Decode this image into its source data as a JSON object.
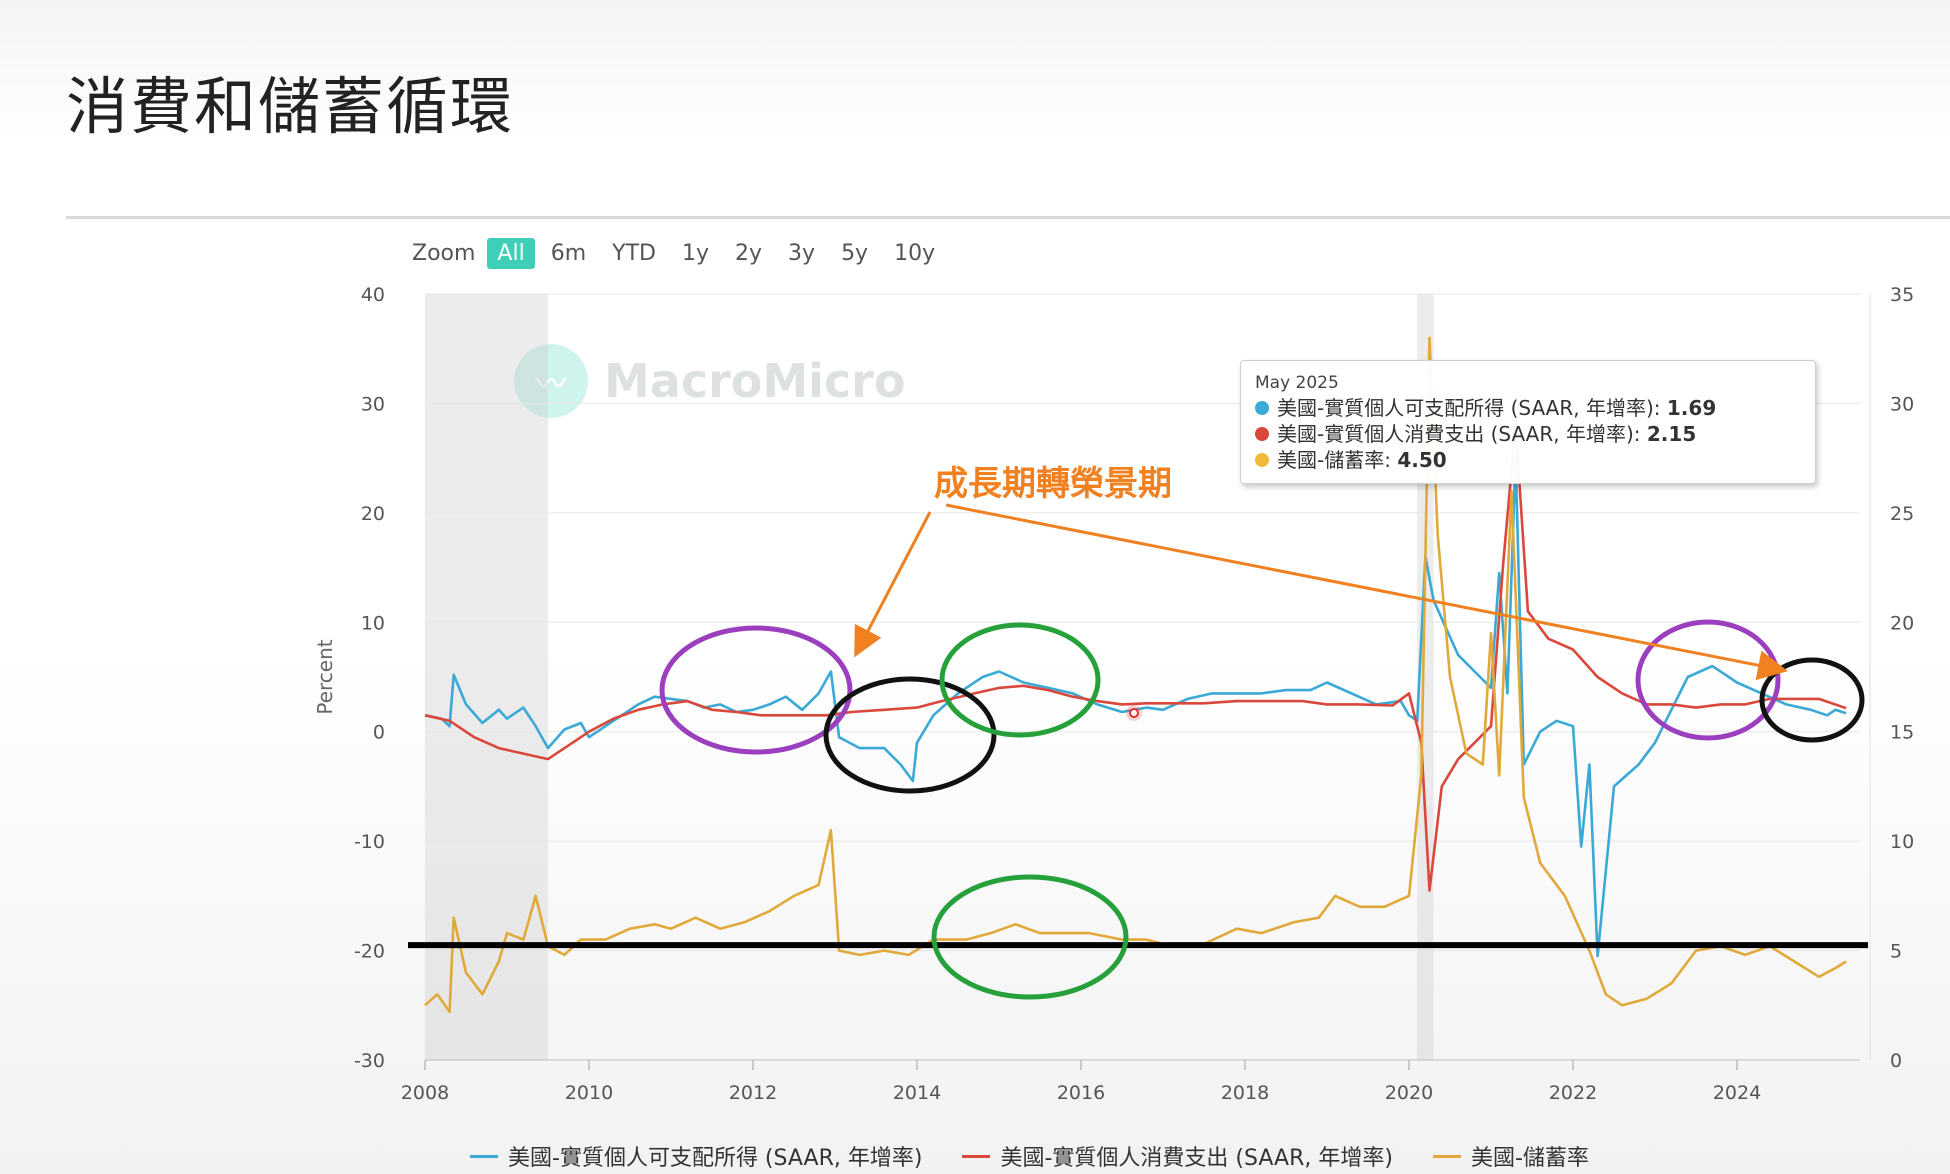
{
  "page": {
    "title": "消費和儲蓄循環"
  },
  "zoom": {
    "label": "Zoom",
    "buttons": [
      "All",
      "6m",
      "YTD",
      "1y",
      "2y",
      "3y",
      "5y",
      "10y"
    ],
    "active": "All"
  },
  "watermark": {
    "text": "MacroMicro"
  },
  "annotation": {
    "label": "成長期轉榮景期"
  },
  "tooltip": {
    "date": "May 2025",
    "rows": [
      {
        "name": "美國-實質個人可支配所得 (SAAR, 年增率)",
        "value": "1.69",
        "color": "#3aa9d6"
      },
      {
        "name": "美國-實質個人消費支出 (SAAR, 年增率)",
        "value": "2.15",
        "color": "#d9483b"
      },
      {
        "name": "美國-儲蓄率",
        "value": "4.50",
        "color": "#f2b93b"
      }
    ]
  },
  "legend": [
    {
      "name": "美國-實質個人可支配所得 (SAAR, 年增率)",
      "color": "#3aa9d6"
    },
    {
      "name": "美國-實質個人消費支出 (SAAR, 年增率)",
      "color": "#d9483b"
    },
    {
      "name": "美國-儲蓄率",
      "color": "#e0a93a"
    }
  ],
  "chart_data": {
    "type": "line",
    "xlabel": "",
    "ylabel": "Percent",
    "xlim": [
      2008,
      2025.5
    ],
    "x_ticks": [
      "2008",
      "2010",
      "2012",
      "2014",
      "2016",
      "2018",
      "2020",
      "2022",
      "2024"
    ],
    "ylim_left": [
      -30,
      40
    ],
    "y_ticks_left": [
      "40",
      "30",
      "20",
      "10",
      "0",
      "-10",
      "-20",
      "-30"
    ],
    "ylim_right": [
      0,
      35
    ],
    "y_ticks_right": [
      "35",
      "30",
      "25",
      "20",
      "15",
      "10",
      "5",
      "0"
    ],
    "grid": true,
    "shaded_periods": [
      [
        2008.0,
        2009.5
      ],
      [
        2020.1,
        2020.3
      ]
    ],
    "reference_line_left_y": -19.5,
    "series": [
      {
        "name": "美國-實質個人可支配所得 (SAAR, 年增率)",
        "axis": "left",
        "color": "#3aa9d6",
        "points": [
          [
            2008.0,
            1.5
          ],
          [
            2008.2,
            1.2
          ],
          [
            2008.3,
            0.5
          ],
          [
            2008.35,
            5.2
          ],
          [
            2008.5,
            2.5
          ],
          [
            2008.7,
            0.8
          ],
          [
            2008.9,
            2.0
          ],
          [
            2009.0,
            1.2
          ],
          [
            2009.2,
            2.2
          ],
          [
            2009.35,
            0.5
          ],
          [
            2009.5,
            -1.5
          ],
          [
            2009.7,
            0.2
          ],
          [
            2009.9,
            0.8
          ],
          [
            2010.0,
            -0.5
          ],
          [
            2010.2,
            0.5
          ],
          [
            2010.4,
            1.5
          ],
          [
            2010.6,
            2.5
          ],
          [
            2010.8,
            3.2
          ],
          [
            2011.0,
            3.0
          ],
          [
            2011.2,
            2.8
          ],
          [
            2011.4,
            2.2
          ],
          [
            2011.6,
            2.5
          ],
          [
            2011.8,
            1.8
          ],
          [
            2012.0,
            2.0
          ],
          [
            2012.2,
            2.5
          ],
          [
            2012.4,
            3.2
          ],
          [
            2012.6,
            2.0
          ],
          [
            2012.8,
            3.5
          ],
          [
            2012.95,
            5.5
          ],
          [
            2013.05,
            -0.5
          ],
          [
            2013.3,
            -1.5
          ],
          [
            2013.6,
            -1.5
          ],
          [
            2013.8,
            -3.0
          ],
          [
            2013.95,
            -4.5
          ],
          [
            2014.0,
            -1.0
          ],
          [
            2014.2,
            1.5
          ],
          [
            2014.5,
            3.5
          ],
          [
            2014.8,
            5.0
          ],
          [
            2015.0,
            5.5
          ],
          [
            2015.3,
            4.5
          ],
          [
            2015.6,
            4.0
          ],
          [
            2015.9,
            3.5
          ],
          [
            2016.2,
            2.5
          ],
          [
            2016.5,
            1.8
          ],
          [
            2016.8,
            2.2
          ],
          [
            2017.0,
            2.0
          ],
          [
            2017.3,
            3.0
          ],
          [
            2017.6,
            3.5
          ],
          [
            2017.9,
            3.5
          ],
          [
            2018.2,
            3.5
          ],
          [
            2018.5,
            3.8
          ],
          [
            2018.8,
            3.8
          ],
          [
            2019.0,
            4.5
          ],
          [
            2019.3,
            3.5
          ],
          [
            2019.6,
            2.5
          ],
          [
            2019.9,
            2.8
          ],
          [
            2020.0,
            1.5
          ],
          [
            2020.1,
            1.0
          ],
          [
            2020.2,
            16.0
          ],
          [
            2020.3,
            12.0
          ],
          [
            2020.45,
            9.5
          ],
          [
            2020.6,
            7.0
          ],
          [
            2020.8,
            5.5
          ],
          [
            2021.0,
            4.0
          ],
          [
            2021.1,
            14.5
          ],
          [
            2021.2,
            3.5
          ],
          [
            2021.3,
            25.0
          ],
          [
            2021.4,
            -3.0
          ],
          [
            2021.6,
            0.0
          ],
          [
            2021.8,
            1.0
          ],
          [
            2022.0,
            0.5
          ],
          [
            2022.1,
            -10.5
          ],
          [
            2022.2,
            -3.0
          ],
          [
            2022.3,
            -20.5
          ],
          [
            2022.5,
            -5.0
          ],
          [
            2022.8,
            -3.0
          ],
          [
            2023.0,
            -1.0
          ],
          [
            2023.2,
            2.0
          ],
          [
            2023.4,
            5.0
          ],
          [
            2023.7,
            6.0
          ],
          [
            2024.0,
            4.5
          ],
          [
            2024.3,
            3.5
          ],
          [
            2024.6,
            2.5
          ],
          [
            2024.9,
            2.0
          ],
          [
            2025.1,
            1.5
          ],
          [
            2025.2,
            2.0
          ],
          [
            2025.33,
            1.69
          ]
        ]
      },
      {
        "name": "美國-實質個人消費支出 (SAAR, 年增率)",
        "axis": "left",
        "color": "#d9483b",
        "points": [
          [
            2008.0,
            1.5
          ],
          [
            2008.3,
            1.0
          ],
          [
            2008.6,
            -0.5
          ],
          [
            2008.9,
            -1.5
          ],
          [
            2009.2,
            -2.0
          ],
          [
            2009.5,
            -2.5
          ],
          [
            2009.8,
            -1.0
          ],
          [
            2010.0,
            0.0
          ],
          [
            2010.3,
            1.2
          ],
          [
            2010.6,
            2.0
          ],
          [
            2010.9,
            2.5
          ],
          [
            2011.2,
            2.8
          ],
          [
            2011.5,
            2.0
          ],
          [
            2011.8,
            1.8
          ],
          [
            2012.1,
            1.5
          ],
          [
            2012.5,
            1.5
          ],
          [
            2012.9,
            1.5
          ],
          [
            2013.2,
            1.8
          ],
          [
            2013.6,
            2.0
          ],
          [
            2014.0,
            2.2
          ],
          [
            2014.3,
            2.8
          ],
          [
            2014.7,
            3.5
          ],
          [
            2015.0,
            4.0
          ],
          [
            2015.3,
            4.2
          ],
          [
            2015.6,
            3.8
          ],
          [
            2015.9,
            3.2
          ],
          [
            2016.2,
            2.8
          ],
          [
            2016.5,
            2.5
          ],
          [
            2016.8,
            2.6
          ],
          [
            2017.1,
            2.6
          ],
          [
            2017.5,
            2.6
          ],
          [
            2017.9,
            2.8
          ],
          [
            2018.3,
            2.8
          ],
          [
            2018.7,
            2.8
          ],
          [
            2019.0,
            2.5
          ],
          [
            2019.4,
            2.5
          ],
          [
            2019.8,
            2.4
          ],
          [
            2020.0,
            3.5
          ],
          [
            2020.15,
            -1.0
          ],
          [
            2020.25,
            -14.5
          ],
          [
            2020.4,
            -5.0
          ],
          [
            2020.6,
            -2.5
          ],
          [
            2020.8,
            -1.0
          ],
          [
            2021.0,
            0.5
          ],
          [
            2021.15,
            15.5
          ],
          [
            2021.3,
            28.0
          ],
          [
            2021.45,
            11.0
          ],
          [
            2021.7,
            8.5
          ],
          [
            2022.0,
            7.5
          ],
          [
            2022.3,
            5.0
          ],
          [
            2022.6,
            3.5
          ],
          [
            2022.9,
            2.5
          ],
          [
            2023.2,
            2.5
          ],
          [
            2023.5,
            2.2
          ],
          [
            2023.8,
            2.5
          ],
          [
            2024.1,
            2.5
          ],
          [
            2024.4,
            3.0
          ],
          [
            2024.7,
            3.0
          ],
          [
            2025.0,
            3.0
          ],
          [
            2025.33,
            2.15
          ]
        ]
      },
      {
        "name": "美國-儲蓄率",
        "axis": "right",
        "color": "#e0a93a",
        "points": [
          [
            2008.0,
            2.5
          ],
          [
            2008.15,
            3.0
          ],
          [
            2008.3,
            2.2
          ],
          [
            2008.35,
            6.5
          ],
          [
            2008.5,
            4.0
          ],
          [
            2008.7,
            3.0
          ],
          [
            2008.9,
            4.5
          ],
          [
            2009.0,
            5.8
          ],
          [
            2009.2,
            5.5
          ],
          [
            2009.35,
            7.5
          ],
          [
            2009.5,
            5.2
          ],
          [
            2009.7,
            4.8
          ],
          [
            2009.9,
            5.5
          ],
          [
            2010.2,
            5.5
          ],
          [
            2010.5,
            6.0
          ],
          [
            2010.8,
            6.2
          ],
          [
            2011.0,
            6.0
          ],
          [
            2011.3,
            6.5
          ],
          [
            2011.6,
            6.0
          ],
          [
            2011.9,
            6.3
          ],
          [
            2012.2,
            6.8
          ],
          [
            2012.5,
            7.5
          ],
          [
            2012.8,
            8.0
          ],
          [
            2012.95,
            10.5
          ],
          [
            2013.05,
            5.0
          ],
          [
            2013.3,
            4.8
          ],
          [
            2013.6,
            5.0
          ],
          [
            2013.9,
            4.8
          ],
          [
            2014.2,
            5.5
          ],
          [
            2014.6,
            5.5
          ],
          [
            2014.9,
            5.8
          ],
          [
            2015.2,
            6.2
          ],
          [
            2015.5,
            5.8
          ],
          [
            2015.8,
            5.8
          ],
          [
            2016.1,
            5.8
          ],
          [
            2016.5,
            5.5
          ],
          [
            2016.8,
            5.5
          ],
          [
            2017.1,
            5.2
          ],
          [
            2017.5,
            5.3
          ],
          [
            2017.9,
            6.0
          ],
          [
            2018.2,
            5.8
          ],
          [
            2018.6,
            6.3
          ],
          [
            2018.9,
            6.5
          ],
          [
            2019.1,
            7.5
          ],
          [
            2019.4,
            7.0
          ],
          [
            2019.7,
            7.0
          ],
          [
            2020.0,
            7.5
          ],
          [
            2020.15,
            13.0
          ],
          [
            2020.25,
            33.0
          ],
          [
            2020.35,
            24.0
          ],
          [
            2020.5,
            17.5
          ],
          [
            2020.7,
            14.0
          ],
          [
            2020.9,
            13.5
          ],
          [
            2021.0,
            19.5
          ],
          [
            2021.1,
            13.0
          ],
          [
            2021.25,
            26.0
          ],
          [
            2021.4,
            12.0
          ],
          [
            2021.6,
            9.0
          ],
          [
            2021.9,
            7.5
          ],
          [
            2022.2,
            5.0
          ],
          [
            2022.4,
            3.0
          ],
          [
            2022.6,
            2.5
          ],
          [
            2022.9,
            2.8
          ],
          [
            2023.2,
            3.5
          ],
          [
            2023.5,
            5.0
          ],
          [
            2023.8,
            5.2
          ],
          [
            2024.1,
            4.8
          ],
          [
            2024.4,
            5.2
          ],
          [
            2024.7,
            4.5
          ],
          [
            2025.0,
            3.8
          ],
          [
            2025.2,
            4.2
          ],
          [
            2025.33,
            4.5
          ]
        ]
      }
    ]
  }
}
